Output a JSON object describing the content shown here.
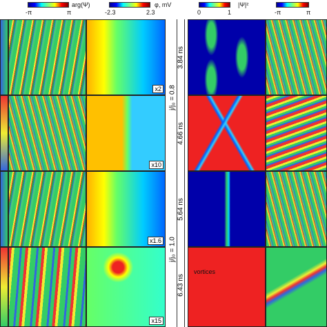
{
  "colorbars": [
    {
      "min": "-π",
      "max": "π",
      "label": "arg(Ψ)"
    },
    {
      "min": "-2.3",
      "max": "2.3",
      "label": "φ, mV"
    },
    {
      "min": "0",
      "max": "1",
      "label": "|Ψ|²"
    },
    {
      "min": "-π",
      "max": "π"
    }
  ],
  "times": [
    "3.84 ns",
    "4.66 ns",
    "5.64 ns",
    "6.43 ns"
  ],
  "currents": [
    "j/j₀ = 0.8",
    "j/j₀ = 1.0"
  ],
  "zooms": [
    "x2",
    "x10",
    "x1.6",
    "x15"
  ],
  "annotation": "vortices"
}
